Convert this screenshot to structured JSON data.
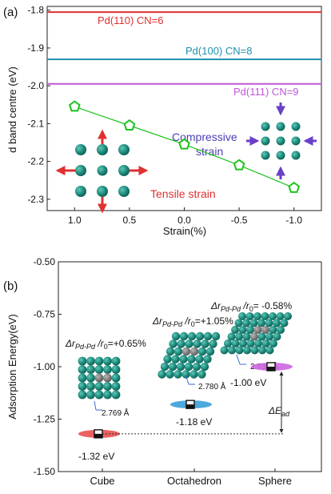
{
  "chart_data": [
    {
      "panel": "(a)",
      "type": "scatter",
      "ylabel": "d band centre (eV)",
      "xlabel": "Strain(%)",
      "xlim": [
        1.25,
        -1.25
      ],
      "ylim": [
        -2.33,
        -1.79
      ],
      "x_ticks": [
        "1.0",
        "0.5",
        "0.0",
        "-0.5",
        "-1.0"
      ],
      "x_tick_values": [
        1.0,
        0.5,
        0.0,
        -0.5,
        -1.0
      ],
      "y_ticks": [
        "-1.8",
        "-1.9",
        "-2.0",
        "-2.1",
        "-2.2",
        "-2.3"
      ],
      "y_tick_values": [
        -1.8,
        -1.9,
        -2.0,
        -2.1,
        -2.2,
        -2.3
      ],
      "series": [
        {
          "x": [
            1.0,
            0.5,
            0.0,
            -0.5,
            -1.0
          ],
          "y": [
            -2.055,
            -2.105,
            -2.155,
            -2.21,
            -2.27
          ],
          "color": "#1bc31b"
        }
      ],
      "reference_lines": [
        {
          "y": -1.805,
          "label": "Pd(110)   CN=6",
          "color": "#e03030"
        },
        {
          "y": -1.93,
          "label": "Pd(100)   CN=8",
          "color": "#1f8fae"
        },
        {
          "y": -1.995,
          "label": "Pd(111)   CN=9",
          "color": "#c157d8"
        }
      ],
      "annotations": {
        "compressive_line1": "Compressive",
        "compressive_line2": "strain",
        "tensile": "Tensile strain"
      },
      "colors": {
        "compressive": "#4b3fb3",
        "tensile": "#e03030",
        "atom": "#1d8a7c",
        "arrow_tensile": "#e03030",
        "arrow_compressive": "#6a40c8"
      },
      "grid": false
    },
    {
      "panel": "(b)",
      "type": "scatter",
      "ylabel": "Adsorption Energy(eV)",
      "ylim": [
        -1.5,
        -0.5
      ],
      "y_ticks": [
        "-0.50",
        "-0.75",
        "-1.00",
        "-1.25",
        "-1.50"
      ],
      "y_tick_values": [
        -0.5,
        -0.75,
        -1.0,
        -1.25,
        -1.5
      ],
      "categories": [
        "Cube",
        "Octahedron",
        "Sphere"
      ],
      "values": [
        -1.32,
        -1.18,
        -1.0
      ],
      "value_labels": [
        "-1.32 eV",
        "-1.18 eV",
        "-1.00 eV"
      ],
      "marker_colors": [
        "#e85050",
        "#3aa0d8",
        "#cc66e0"
      ],
      "strain_labels": [
        {
          "prefix": "Δr",
          "sub": "Pd-Pd",
          "mid": " /r",
          "sub0": "0",
          "value": "=+0.65%"
        },
        {
          "prefix": "Δr",
          "sub": "Pd-Pd",
          "mid": " /r",
          "sub0": "0",
          "value": "=+1.05%"
        },
        {
          "prefix": "Δr",
          "sub": "Pd-Pd",
          "mid": " /r",
          "sub0": "0",
          "value": "= -0.58%"
        }
      ],
      "bond_lengths": [
        "2.769 Å",
        "2.780 Å",
        "2.734 Å"
      ],
      "delta_label_main": "ΔE",
      "delta_label_sub": "ad",
      "grid": false
    }
  ]
}
